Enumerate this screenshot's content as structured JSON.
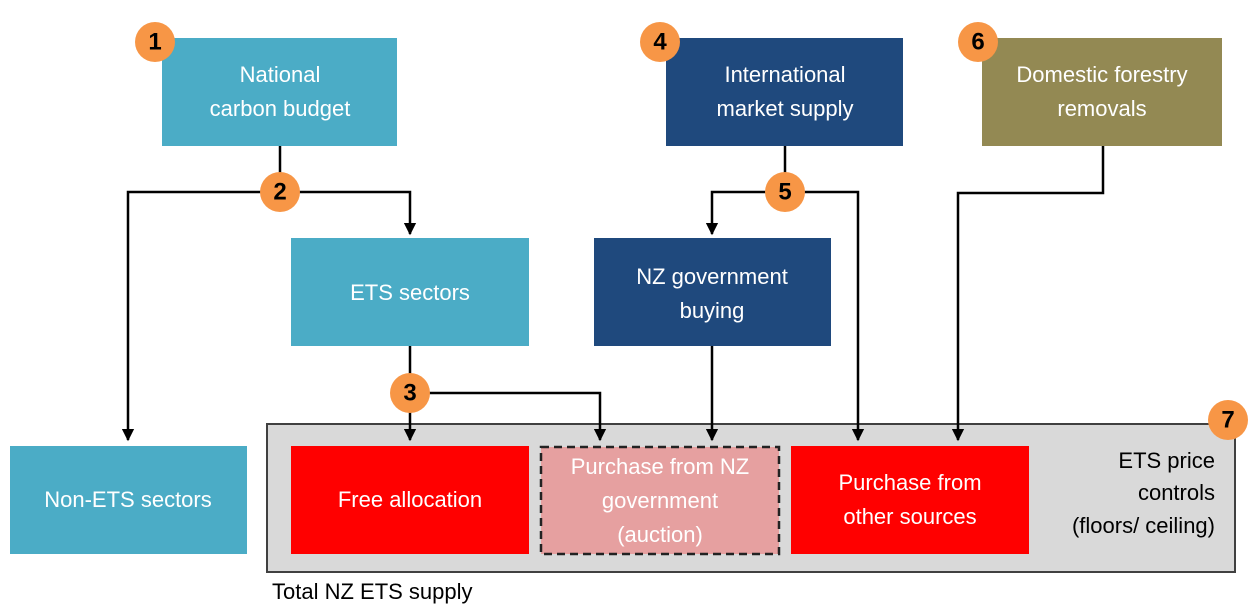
{
  "nodes": [
    {
      "badge": "1",
      "label": [
        "National",
        "carbon budget"
      ]
    },
    {
      "badge": "4",
      "label": [
        "International",
        "market supply"
      ]
    },
    {
      "badge": "6",
      "label": [
        "Domestic forestry",
        "removals"
      ]
    },
    {
      "label": [
        "ETS sectors"
      ]
    },
    {
      "label": [
        "NZ government",
        "buying"
      ]
    },
    {
      "label": [
        "Non-ETS sectors"
      ]
    },
    {
      "label": [
        "Free allocation"
      ]
    },
    {
      "label": [
        "Purchase from NZ",
        "government",
        "(auction)"
      ]
    },
    {
      "label": [
        "Purchase from",
        "other sources"
      ]
    }
  ],
  "badges": [
    "2",
    "3",
    "5"
  ],
  "price_controls": {
    "badge": "7",
    "label": [
      "ETS price",
      "controls",
      "(floors/ ceiling)"
    ]
  },
  "footer": "Total NZ ETS supply"
}
